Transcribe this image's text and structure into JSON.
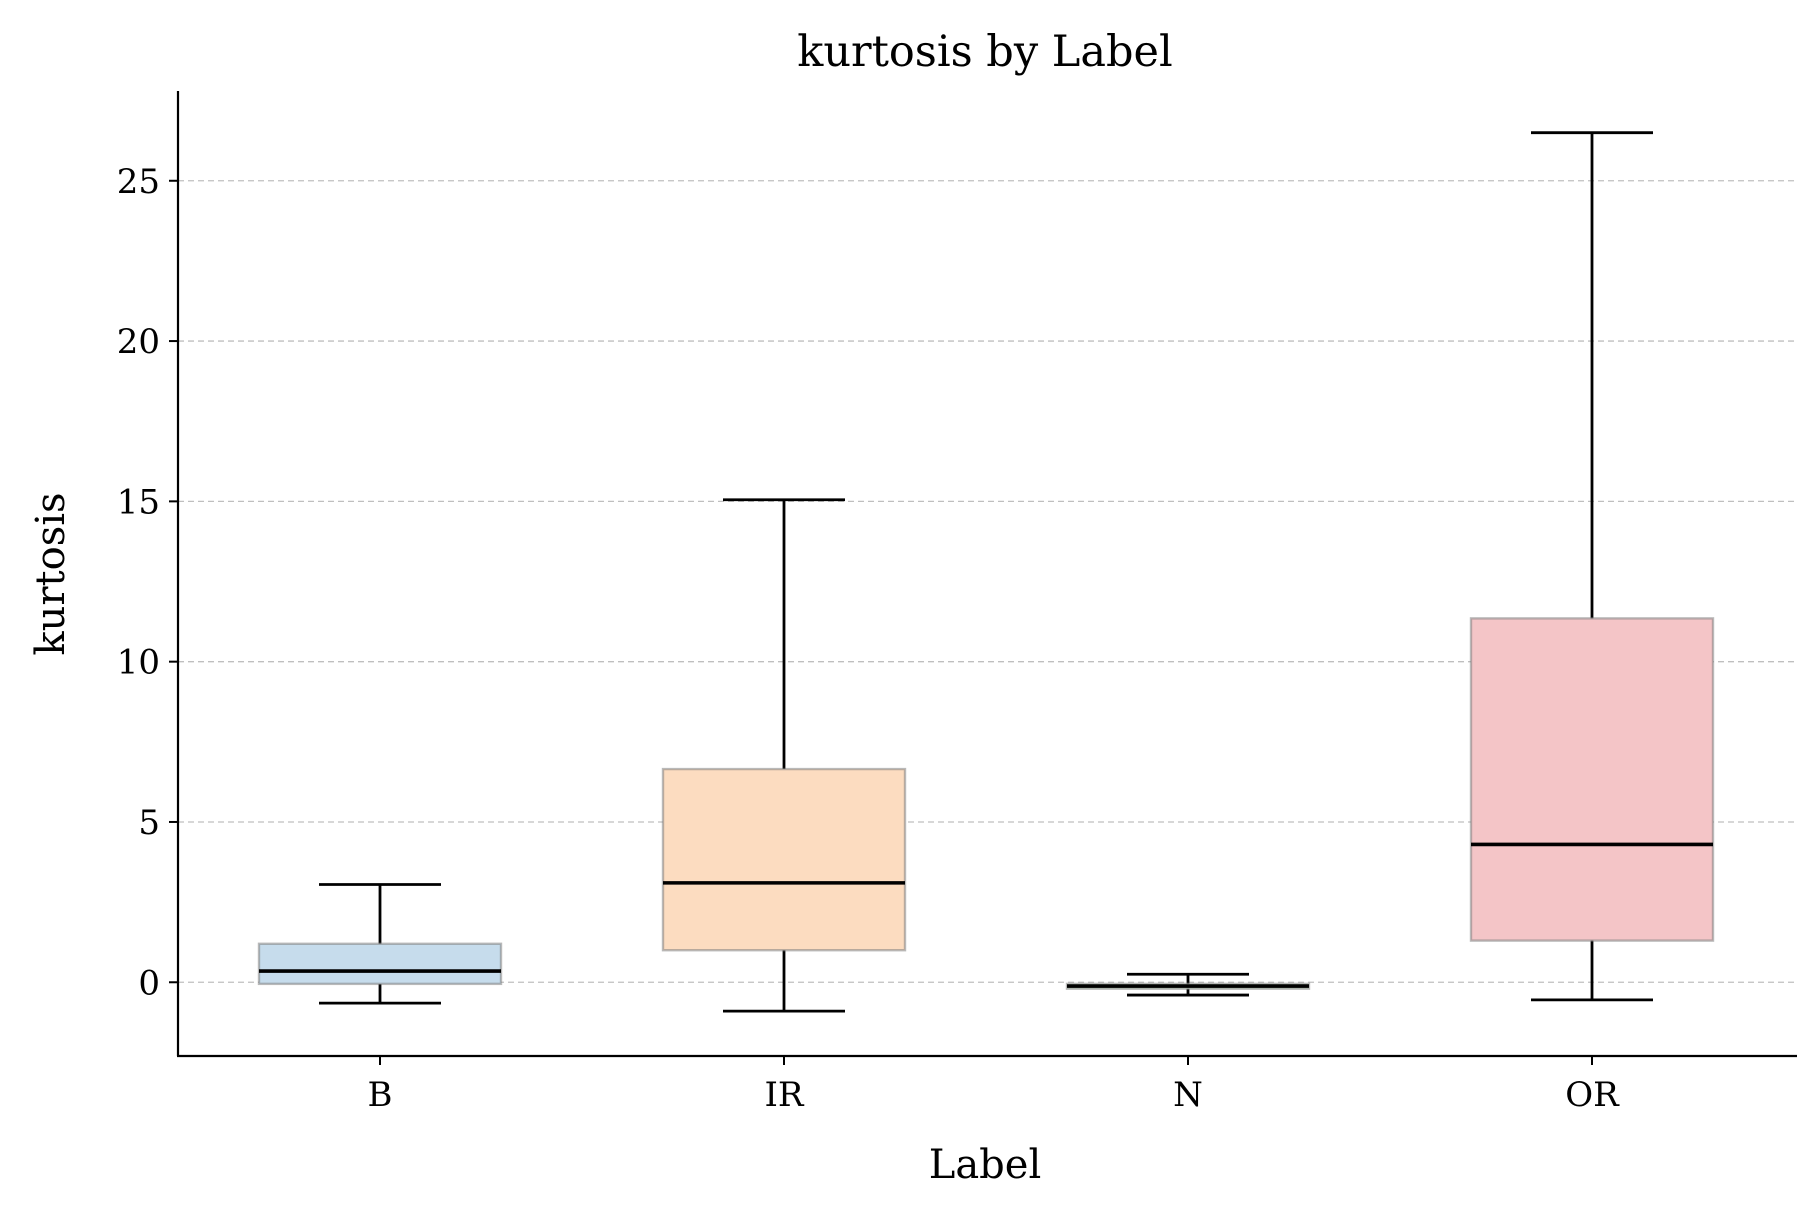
{
  "chart_data": {
    "type": "box",
    "title": "kurtosis by Label",
    "xlabel": "Label",
    "ylabel": "kurtosis",
    "ylim": [
      -2.3,
      27.8
    ],
    "yticks": [
      0,
      5,
      10,
      15,
      20,
      25
    ],
    "grid": "horizontal dashed",
    "categories": [
      "B",
      "IR",
      "N",
      "OR"
    ],
    "boxes": [
      {
        "label": "B",
        "whisker_low": -0.65,
        "q1": -0.05,
        "median": 0.35,
        "q3": 1.2,
        "whisker_high": 3.05,
        "color": "#c6dcec"
      },
      {
        "label": "IR",
        "whisker_low": -0.9,
        "q1": 1.0,
        "median": 3.1,
        "q3": 6.65,
        "whisker_high": 15.05,
        "color": "#fcdcc0"
      },
      {
        "label": "N",
        "whisker_low": -0.4,
        "q1": -0.2,
        "median": -0.12,
        "q3": -0.05,
        "whisker_high": 0.25,
        "color": "#d0ead0"
      },
      {
        "label": "OR",
        "whisker_low": -0.55,
        "q1": 1.3,
        "median": 4.3,
        "q3": 11.35,
        "whisker_high": 26.5,
        "color": "#f4c5c7"
      }
    ]
  }
}
